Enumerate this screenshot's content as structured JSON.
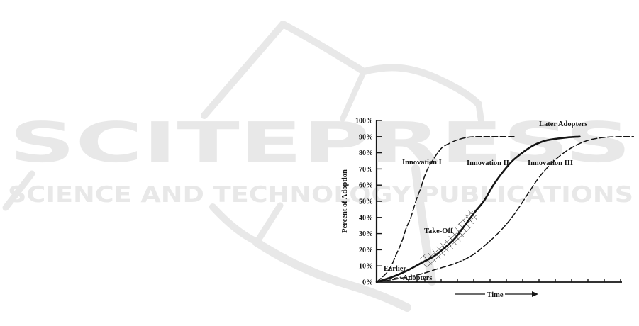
{
  "watermark": {
    "brand": "SCITEPRESS",
    "subtitle": "SCIENCE AND TECHNOLOGY PUBLICATIONS",
    "color": "#e8e8e8",
    "logo": "open-book"
  },
  "chart_data": {
    "type": "line",
    "title": "",
    "xlabel": "Time",
    "ylabel": "Percent of Adoption",
    "ylim": [
      0,
      100
    ],
    "xlim": [
      0,
      100
    ],
    "grid": false,
    "x_axis_has_numeric_labels": false,
    "ytick_labels": [
      "0%",
      "10%",
      "20%",
      "30%",
      "40%",
      "50%",
      "60%",
      "70%",
      "80%",
      "90%",
      "100%"
    ],
    "xtick_count": 14,
    "labels": {
      "later_adopters": "Later Adopters",
      "innovation1": "Innovation I",
      "innovation2": "Innovation II",
      "innovation3": "Innovation III",
      "take_off": "Take-Off",
      "earlier": "Earlier",
      "adopters": "Adopters",
      "time": "Time",
      "ylabel": "Percent of Adoption"
    },
    "series": [
      {
        "name": "Innovation I",
        "style": "dashed",
        "points": [
          [
            0,
            0
          ],
          [
            4,
            5.5
          ],
          [
            6,
            10
          ],
          [
            8,
            17
          ],
          [
            9.5,
            22
          ],
          [
            11,
            28
          ],
          [
            12,
            33
          ],
          [
            14,
            40
          ],
          [
            15,
            45
          ],
          [
            16.5,
            52
          ],
          [
            18,
            58
          ],
          [
            19.5,
            65
          ],
          [
            21,
            70.5
          ],
          [
            23,
            75.5
          ],
          [
            25,
            80
          ],
          [
            27,
            83.5
          ],
          [
            30,
            86
          ],
          [
            33,
            88
          ],
          [
            37,
            89.5
          ],
          [
            41,
            90
          ],
          [
            49,
            90
          ],
          [
            57,
            90
          ]
        ]
      },
      {
        "name": "Innovation II",
        "style": "solid",
        "points": [
          [
            0,
            0
          ],
          [
            7,
            3.5
          ],
          [
            13,
            7.5
          ],
          [
            18.5,
            12
          ],
          [
            23.5,
            16
          ],
          [
            28,
            21.5
          ],
          [
            32,
            27
          ],
          [
            36,
            35
          ],
          [
            40,
            43
          ],
          [
            44,
            50.5
          ],
          [
            47.5,
            59.5
          ],
          [
            51.5,
            68
          ],
          [
            55.5,
            75
          ],
          [
            60,
            80.5
          ],
          [
            64,
            84.5
          ],
          [
            69,
            87.5
          ],
          [
            74,
            88.8
          ],
          [
            78,
            89.5
          ],
          [
            83,
            90
          ]
        ]
      },
      {
        "name": "Innovation III",
        "style": "dashed",
        "points": [
          [
            0,
            0
          ],
          [
            8.5,
            2
          ],
          [
            17,
            4.5
          ],
          [
            24.5,
            8
          ],
          [
            32,
            11.5
          ],
          [
            39,
            16.5
          ],
          [
            46,
            25
          ],
          [
            52,
            34
          ],
          [
            57,
            43.5
          ],
          [
            62,
            55
          ],
          [
            66.5,
            65
          ],
          [
            71.5,
            73.5
          ],
          [
            77,
            80.5
          ],
          [
            82,
            85
          ],
          [
            87,
            88
          ],
          [
            93,
            89.5
          ],
          [
            100,
            90
          ],
          [
            105,
            90
          ]
        ]
      }
    ],
    "takeoff_band": {
      "series": "Innovation II",
      "t_start": 13.5,
      "t_end": 40
    }
  }
}
